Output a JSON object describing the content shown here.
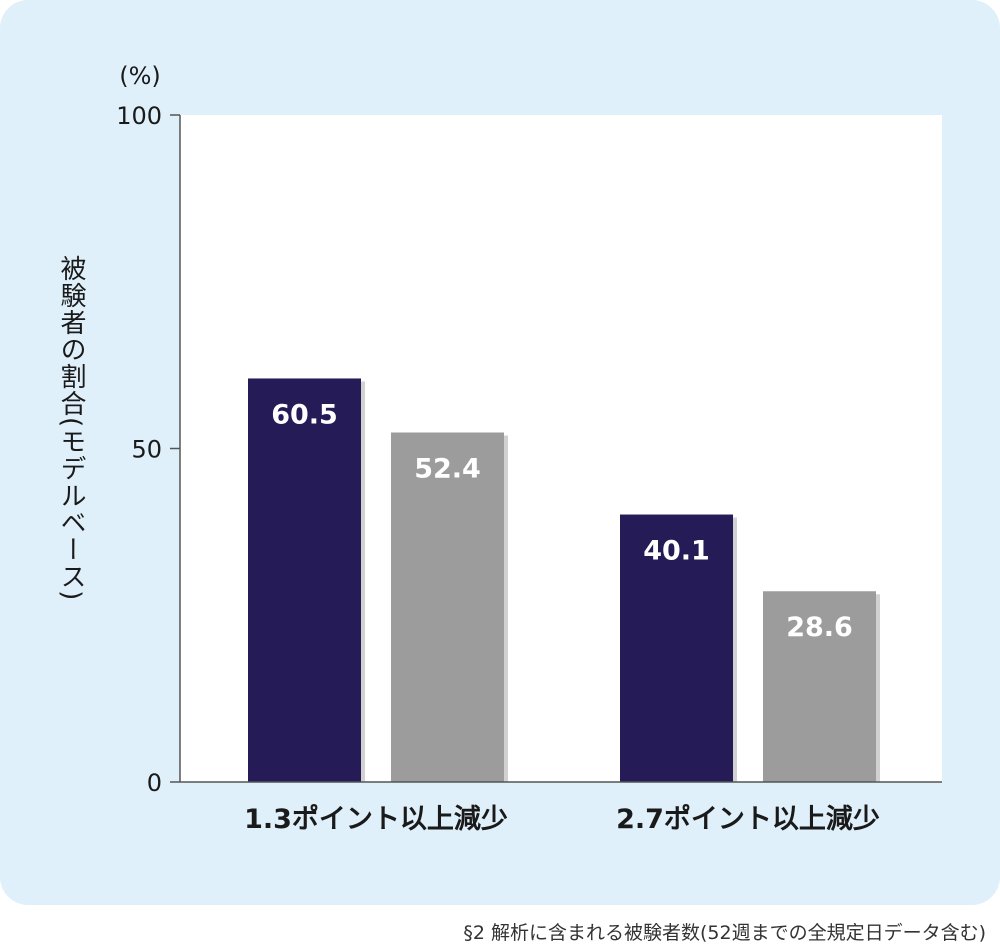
{
  "chart_data": {
    "type": "bar",
    "unit_label": "(%)",
    "ylabel": "被験者の割合(モデルベース)",
    "xlabel": "",
    "ylim": [
      0,
      100
    ],
    "yticks": [
      "0",
      "50",
      "100"
    ],
    "categories": [
      "1.3ポイント以上減少",
      "2.7ポイント以上減少"
    ],
    "series": [
      {
        "values": [
          60.5,
          40.1
        ],
        "color": "#251c57"
      },
      {
        "values": [
          52.4,
          28.6
        ],
        "color": "#9c9c9c"
      }
    ],
    "value_labels": [
      [
        "60.5",
        "40.1"
      ],
      [
        "52.4",
        "28.6"
      ]
    ],
    "grid": false,
    "plot_background": "#ffffff"
  },
  "footnote": "§2 解析に含まれる被験者数(52週までの全規定日データ含む)",
  "panel_color": "#dff0fb"
}
